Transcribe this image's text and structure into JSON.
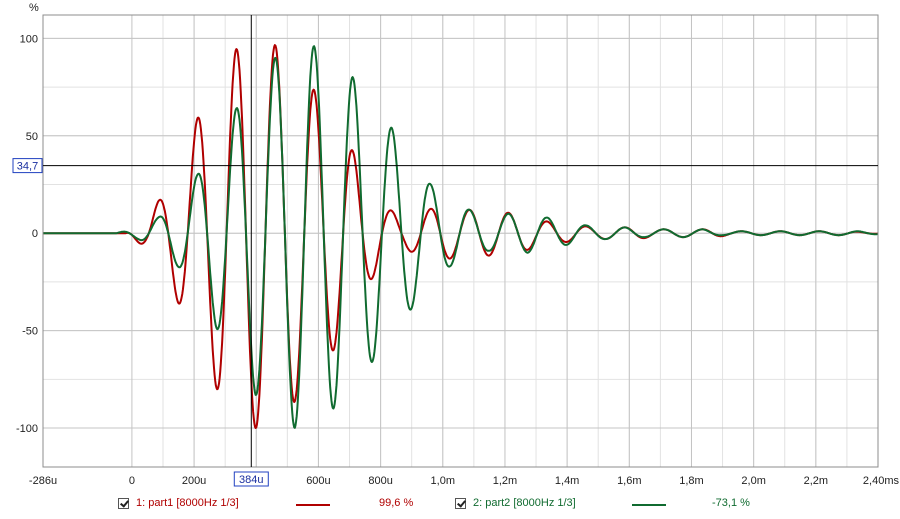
{
  "chart_data": {
    "type": "line",
    "ylabel": "%",
    "ylim": [
      -120,
      112
    ],
    "xlim_us": [
      -286,
      2400
    ],
    "x_tick_labels": [
      "-286u",
      "0",
      "200u",
      "400u",
      "600u",
      "800u",
      "1,0m",
      "1,2m",
      "1,4m",
      "1,6m",
      "1,8m",
      "2,0m",
      "2,2m",
      "2,40ms"
    ],
    "x_tick_values_us": [
      -286,
      0,
      200,
      400,
      600,
      800,
      1000,
      1200,
      1400,
      1600,
      1800,
      2000,
      2200,
      2400
    ],
    "y_tick_labels": [
      "100",
      "50",
      "0",
      "-50",
      "-100"
    ],
    "y_tick_values": [
      100,
      50,
      0,
      -50,
      -100
    ],
    "grid": true,
    "cursor": {
      "x_label": "384u",
      "x_value_us": 384,
      "y_label": "34,7",
      "y_value": 34.7
    },
    "signal": {
      "frequency_hz": 8000,
      "unit": "us"
    },
    "series": [
      {
        "name": "1: part1 [8000Hz 1/3]",
        "color": "#b00000",
        "cursor_value": "99,6 %",
        "phase_deg": 90,
        "points": [
          [
            50,
            -8
          ],
          [
            117,
            24
          ],
          [
            180,
            -47
          ],
          [
            242,
            71
          ],
          [
            305,
            -89
          ],
          [
            367,
            100
          ],
          [
            430,
            -100
          ],
          [
            492,
            93
          ],
          [
            555,
            -80
          ],
          [
            617,
            67
          ],
          [
            680,
            -53
          ],
          [
            742,
            31
          ],
          [
            805,
            -15
          ],
          [
            867,
            8
          ],
          [
            930,
            -11
          ],
          [
            992,
            14
          ],
          [
            1055,
            -12
          ],
          [
            1117,
            12
          ],
          [
            1180,
            -11
          ],
          [
            1242,
            10
          ],
          [
            1305,
            -7
          ],
          [
            1367,
            5
          ],
          [
            1430,
            -4
          ],
          [
            1492,
            3
          ],
          [
            1555,
            -3
          ],
          [
            1617,
            3
          ],
          [
            1680,
            -2
          ],
          [
            1742,
            2
          ],
          [
            1805,
            -2
          ],
          [
            1867,
            2
          ],
          [
            1930,
            -1
          ],
          [
            1992,
            1
          ],
          [
            2055,
            -1
          ],
          [
            2117,
            1
          ],
          [
            2180,
            -1
          ],
          [
            2242,
            1
          ],
          [
            2305,
            -1
          ]
        ]
      },
      {
        "name": "2: part2 [8000Hz 1/3]",
        "color": "#106b30",
        "cursor_value": "-73,1 %",
        "phase_deg": 0,
        "points": [
          [
            20,
            3
          ],
          [
            85,
            -8
          ],
          [
            148,
            17
          ],
          [
            211,
            -30
          ],
          [
            273,
            49
          ],
          [
            336,
            -64
          ],
          [
            398,
            83
          ],
          [
            461,
            -90
          ],
          [
            523,
            100
          ],
          [
            586,
            -96
          ],
          [
            648,
            90
          ],
          [
            711,
            -80
          ],
          [
            773,
            66
          ],
          [
            836,
            -54
          ],
          [
            898,
            39
          ],
          [
            961,
            -25
          ],
          [
            1023,
            17
          ],
          [
            1086,
            -12
          ],
          [
            1148,
            9
          ],
          [
            1211,
            -10
          ],
          [
            1273,
            10
          ],
          [
            1336,
            -8
          ],
          [
            1398,
            6
          ],
          [
            1461,
            -4
          ],
          [
            1523,
            3
          ],
          [
            1586,
            -3
          ],
          [
            1648,
            2
          ],
          [
            1711,
            -2
          ],
          [
            1773,
            2
          ],
          [
            1836,
            -2
          ],
          [
            1898,
            1
          ],
          [
            1961,
            -1
          ],
          [
            2023,
            1
          ],
          [
            2086,
            -1
          ],
          [
            2148,
            1
          ],
          [
            2211,
            -1
          ],
          [
            2273,
            1
          ],
          [
            2336,
            -1
          ]
        ]
      }
    ]
  },
  "legend": {
    "items": [
      {
        "label": "1: part1 [8000Hz 1/3]",
        "value": "99,6 %",
        "color": "#b00000",
        "checked": true
      },
      {
        "label": "2: part2 [8000Hz 1/3]",
        "value": "-73,1 %",
        "color": "#106b30",
        "checked": true
      }
    ]
  }
}
